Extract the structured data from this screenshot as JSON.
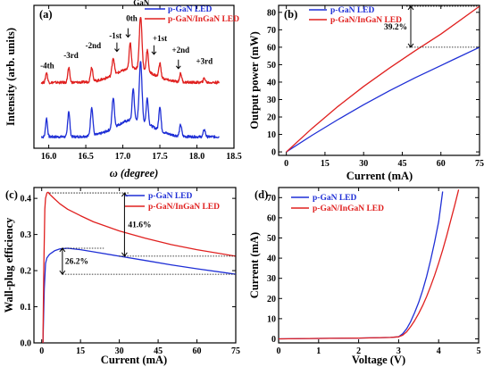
{
  "colors": {
    "blue": "#1f2fd6",
    "red": "#e0201f"
  },
  "chart_data": [
    {
      "id": "a",
      "type": "line",
      "panel_label": "(a)",
      "xlabel": "ω (degree)",
      "ylabel": "Intensity (arb. units)",
      "xlim": [
        15.8,
        18.5
      ],
      "ylim": [
        0,
        1
      ],
      "xticks": [
        "16.0",
        "16.5",
        "17.0",
        "17.5",
        "18.0",
        "18.5"
      ],
      "xtick_values": [
        16.0,
        16.5,
        17.0,
        17.5,
        18.0,
        18.5
      ],
      "legend": [
        "p-GaN LED",
        "p-GaN/InGaN LED"
      ],
      "peak_labels": [
        {
          "text": "-4th",
          "x": 15.98,
          "y": 0.56
        },
        {
          "text": "-3rd",
          "x": 16.3,
          "y": 0.63
        },
        {
          "text": "-2nd",
          "x": 16.6,
          "y": 0.7
        },
        {
          "text": "-1st",
          "x": 16.9,
          "y": 0.77
        },
        {
          "text": "0th",
          "x": 17.12,
          "y": 0.89
        },
        {
          "text": "GaN",
          "x": 17.25,
          "y": 1.0
        },
        {
          "text": "+1st",
          "x": 17.5,
          "y": 0.75
        },
        {
          "text": "+2nd",
          "x": 17.78,
          "y": 0.67
        },
        {
          "text": "+3rd",
          "x": 18.1,
          "y": 0.59
        }
      ],
      "series": [
        {
          "name": "p-GaN LED",
          "color_key": "blue",
          "baseline": 0.08,
          "peaks": [
            [
              15.97,
              0.13,
              0.018
            ],
            [
              16.27,
              0.18,
              0.02
            ],
            [
              16.58,
              0.2,
              0.022
            ],
            [
              16.87,
              0.21,
              0.022
            ],
            [
              17.14,
              0.22,
              0.02
            ],
            [
              17.24,
              0.42,
              0.025
            ],
            [
              17.33,
              0.18,
              0.02
            ],
            [
              17.5,
              0.17,
              0.02
            ],
            [
              17.78,
              0.08,
              0.02
            ],
            [
              18.1,
              0.05,
              0.02
            ]
          ],
          "hump": [
            17.15,
            0.12,
            0.35
          ]
        },
        {
          "name": "p-GaN/InGaN LED",
          "color_key": "red",
          "baseline": 0.46,
          "peaks": [
            [
              15.97,
              0.07,
              0.018
            ],
            [
              16.27,
              0.1,
              0.02
            ],
            [
              16.58,
              0.1,
              0.022
            ],
            [
              16.87,
              0.12,
              0.022
            ],
            [
              17.1,
              0.18,
              0.02
            ],
            [
              17.24,
              0.37,
              0.025
            ],
            [
              17.33,
              0.15,
              0.02
            ],
            [
              17.5,
              0.1,
              0.02
            ],
            [
              17.78,
              0.06,
              0.02
            ],
            [
              18.1,
              0.03,
              0.02
            ]
          ],
          "hump": [
            17.15,
            0.1,
            0.35
          ]
        }
      ]
    },
    {
      "id": "b",
      "type": "line",
      "panel_label": "(b)",
      "xlabel": "Current (mA)",
      "ylabel": "Output power (mW)",
      "xlim": [
        -3,
        75
      ],
      "ylim": [
        -2,
        84
      ],
      "xticks": [
        "0",
        "15",
        "30",
        "45",
        "60",
        "75"
      ],
      "xtick_values": [
        0,
        15,
        30,
        45,
        60,
        75
      ],
      "yticks": [
        "0",
        "10",
        "20",
        "30",
        "40",
        "50",
        "60",
        "70",
        "80"
      ],
      "ytick_values": [
        0,
        10,
        20,
        30,
        40,
        50,
        60,
        70,
        80
      ],
      "legend": [
        "p-GaN LED",
        "p-GaN/InGaN LED"
      ],
      "annotation": {
        "text": "39.2%",
        "x": 75,
        "y_low": 60,
        "y_high": 83.5
      },
      "series": [
        {
          "name": "p-GaN LED",
          "color_key": "blue",
          "x": [
            0,
            10,
            20,
            30,
            40,
            50,
            60,
            75
          ],
          "y": [
            0,
            9.5,
            18.5,
            27,
            35,
            42.5,
            49.5,
            60
          ]
        },
        {
          "name": "p-GaN/InGaN LED",
          "color_key": "red",
          "x": [
            0,
            10,
            20,
            30,
            40,
            50,
            60,
            75
          ],
          "y": [
            0,
            13.5,
            26,
            37.5,
            48,
            58,
            67.5,
            83.5
          ]
        }
      ]
    },
    {
      "id": "c",
      "type": "line",
      "panel_label": "(c)",
      "xlabel": "Current (mA)",
      "ylabel": "Wall-plug efficiency",
      "xlim": [
        -3,
        75
      ],
      "ylim": [
        0,
        0.43
      ],
      "xticks": [
        "0",
        "15",
        "30",
        "45",
        "60",
        "75"
      ],
      "xtick_values": [
        0,
        15,
        30,
        45,
        60,
        75
      ],
      "yticks": [
        "0.0",
        "0.1",
        "0.2",
        "0.3",
        "0.4"
      ],
      "ytick_values": [
        0,
        0.1,
        0.2,
        0.3,
        0.4
      ],
      "legend": [
        "p-GaN LED",
        "p-GaN/InGaN LED"
      ],
      "annotations": [
        {
          "text": "41.6%",
          "x": 32,
          "y_low": 0.24,
          "y_high": 0.415
        },
        {
          "text": "26.2%",
          "x": 8,
          "y_low": 0.19,
          "y_high": 0.262
        }
      ],
      "series": [
        {
          "name": "p-GaN LED",
          "color_key": "blue",
          "x": [
            0.5,
            1,
            1.5,
            2,
            3,
            4,
            5,
            7,
            10,
            15,
            20,
            30,
            40,
            50,
            60,
            75
          ],
          "y": [
            0.0,
            0.15,
            0.22,
            0.235,
            0.245,
            0.25,
            0.255,
            0.26,
            0.262,
            0.258,
            0.252,
            0.24,
            0.228,
            0.216,
            0.205,
            0.19
          ]
        },
        {
          "name": "p-GaN/InGaN LED",
          "color_key": "red",
          "x": [
            0.5,
            0.8,
            1.2,
            1.5,
            2,
            2.5,
            3,
            4,
            5,
            7,
            10,
            15,
            20,
            30,
            40,
            50,
            60,
            75
          ],
          "y": [
            0.0,
            0.2,
            0.37,
            0.4,
            0.415,
            0.417,
            0.412,
            0.405,
            0.398,
            0.385,
            0.37,
            0.352,
            0.335,
            0.31,
            0.29,
            0.272,
            0.258,
            0.24
          ]
        }
      ]
    },
    {
      "id": "d",
      "type": "line",
      "panel_label": "(d)",
      "xlabel": "Voltage (V)",
      "ylabel": "Current (mA)",
      "xlim": [
        0,
        5
      ],
      "ylim": [
        -2,
        75
      ],
      "xticks": [
        "0",
        "1",
        "2",
        "3",
        "4",
        "5"
      ],
      "xtick_values": [
        0,
        1,
        2,
        3,
        4,
        5
      ],
      "yticks": [
        "0",
        "10",
        "20",
        "30",
        "40",
        "50",
        "60",
        "70"
      ],
      "ytick_values": [
        0,
        10,
        20,
        30,
        40,
        50,
        60,
        70
      ],
      "legend": [
        "p-GaN LED",
        "p-GaN/InGaN LED"
      ],
      "series": [
        {
          "name": "p-GaN LED",
          "color_key": "blue",
          "x": [
            0,
            1,
            2,
            2.8,
            3.0,
            3.1,
            3.2,
            3.3,
            3.4,
            3.5,
            3.6,
            3.7,
            3.8,
            3.9,
            4.0,
            4.1
          ],
          "y": [
            0,
            0.2,
            0.4,
            0.7,
            1.0,
            2.5,
            5,
            8.5,
            13,
            18,
            24,
            31,
            39,
            48,
            58,
            73
          ]
        },
        {
          "name": "p-GaN/InGaN LED",
          "color_key": "red",
          "x": [
            0,
            1,
            2,
            2.8,
            3.0,
            3.1,
            3.2,
            3.3,
            3.4,
            3.5,
            3.6,
            3.7,
            3.8,
            3.9,
            4.0,
            4.1,
            4.2,
            4.3,
            4.4,
            4.5
          ],
          "y": [
            0,
            0.2,
            0.4,
            0.7,
            1.0,
            1.8,
            3.5,
            6,
            9,
            12.5,
            16.5,
            21,
            26,
            31.5,
            37.5,
            44,
            51,
            58.5,
            66,
            74
          ]
        }
      ]
    }
  ]
}
